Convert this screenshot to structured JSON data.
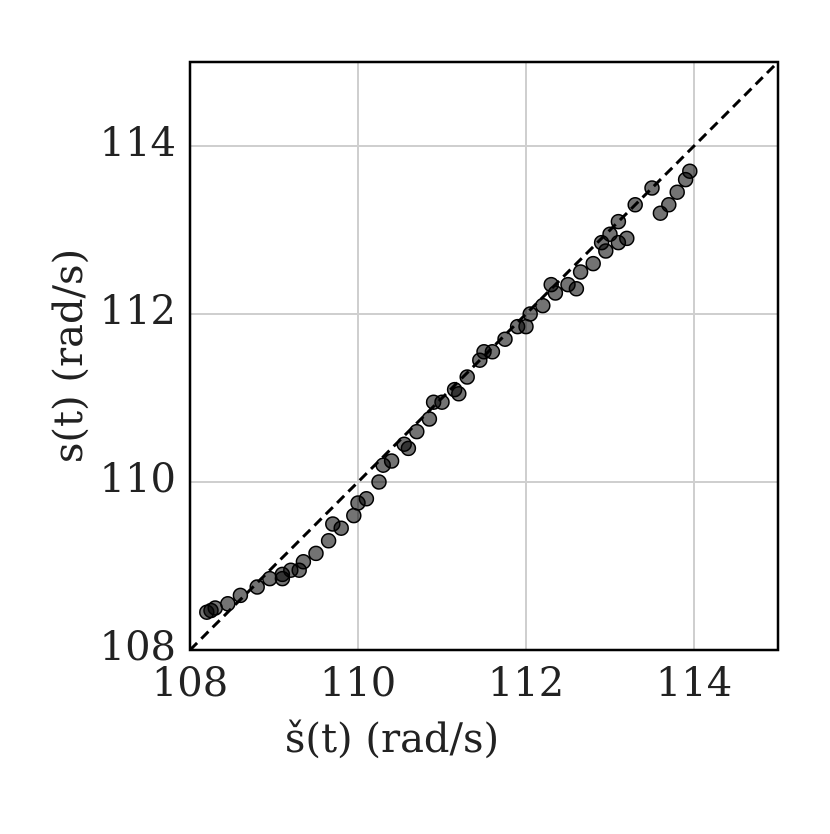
{
  "chart_data": {
    "type": "scatter",
    "xlabel": "š(t) (rad/s)",
    "ylabel": "s(t) (rad/s)",
    "xlim": [
      108,
      115
    ],
    "ylim": [
      108,
      115
    ],
    "xticks": [
      108,
      110,
      112,
      114
    ],
    "yticks": [
      108,
      110,
      112,
      114
    ],
    "grid": true,
    "color": "#000000",
    "reference_line": "dashed",
    "x": [
      108.2,
      108.25,
      108.3,
      108.45,
      108.6,
      108.8,
      108.95,
      109.1,
      109.2,
      109.35,
      109.5,
      109.65,
      109.8,
      109.95,
      110.1,
      110.25,
      110.4,
      110.55,
      110.7,
      110.85,
      111.0,
      111.15,
      111.3,
      111.45,
      111.6,
      111.75,
      111.9,
      112.05,
      112.2,
      112.35,
      112.5,
      112.65,
      112.8,
      112.95,
      113.1,
      113.2,
      112.9,
      113.0,
      113.6,
      113.7,
      113.8,
      113.9,
      113.95,
      113.5,
      113.3,
      113.1,
      112.3,
      111.5,
      110.9,
      110.3,
      109.7,
      109.3,
      109.1,
      112.6,
      112.0,
      111.2,
      110.6,
      110.0
    ],
    "y": [
      108.45,
      108.47,
      108.5,
      108.55,
      108.65,
      108.75,
      108.85,
      108.9,
      108.95,
      109.05,
      109.15,
      109.3,
      109.45,
      109.6,
      109.8,
      110.0,
      110.25,
      110.45,
      110.6,
      110.75,
      110.95,
      111.1,
      111.25,
      111.45,
      111.55,
      111.7,
      111.85,
      112.0,
      112.1,
      112.25,
      112.35,
      112.5,
      112.6,
      112.75,
      112.85,
      112.9,
      112.85,
      112.95,
      113.2,
      113.3,
      113.45,
      113.6,
      113.7,
      113.5,
      113.3,
      113.1,
      112.35,
      111.55,
      110.95,
      110.2,
      109.5,
      108.95,
      108.85,
      112.3,
      111.85,
      111.05,
      110.4,
      109.75
    ]
  }
}
